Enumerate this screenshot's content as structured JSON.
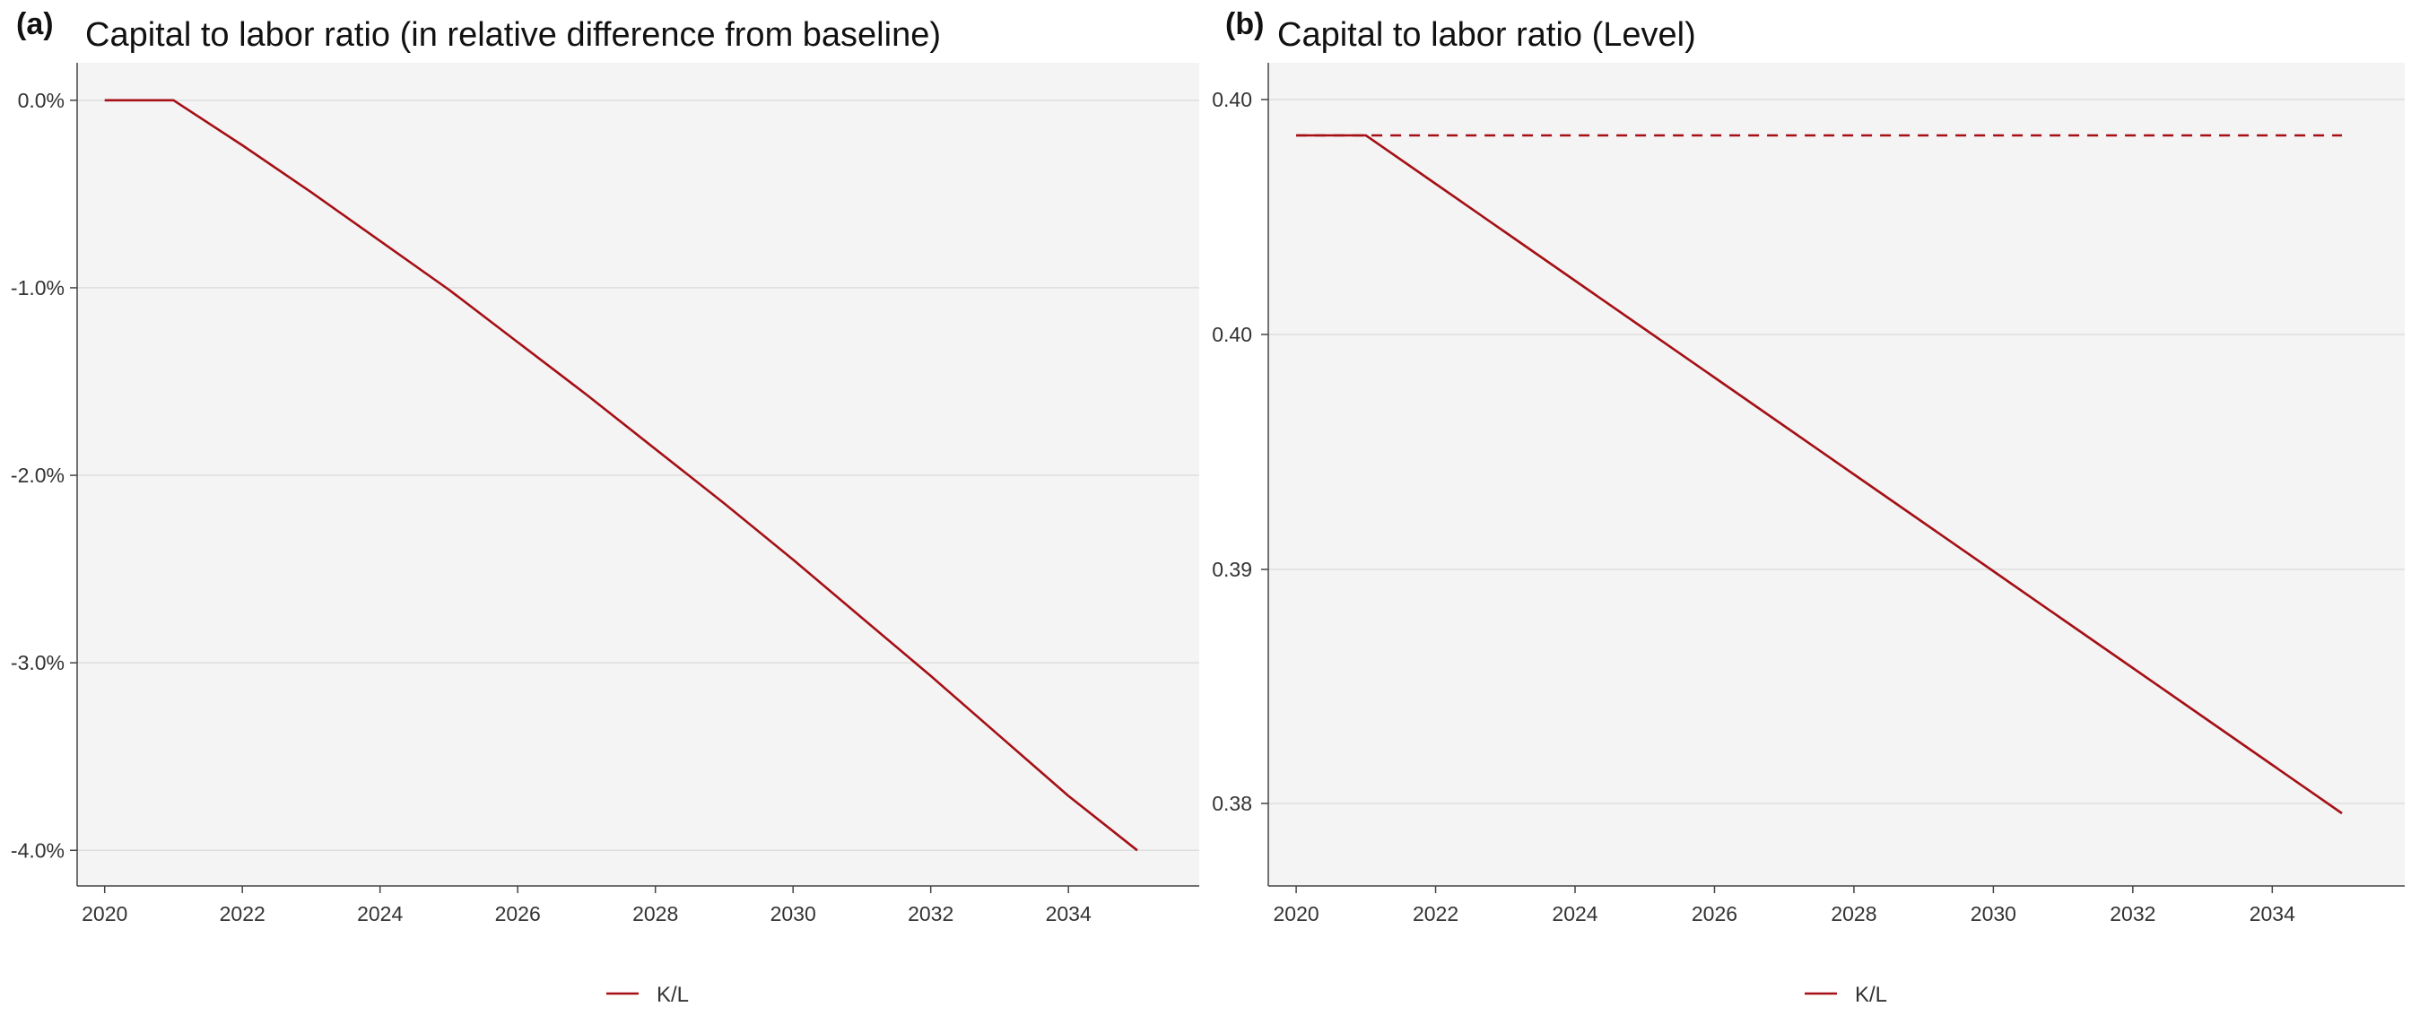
{
  "chart_data": [
    {
      "panel_label": "(a)",
      "type": "line",
      "title": "Capital to labor ratio (in relative difference from baseline)",
      "xlabel": "",
      "ylabel": "",
      "x_ticks": [
        "2020",
        "2022",
        "2024",
        "2026",
        "2028",
        "2030",
        "2032",
        "2034"
      ],
      "y_ticks": [
        "0.0%",
        "-1.0%",
        "-2.0%",
        "-3.0%",
        "-4.0%"
      ],
      "y_tick_values": [
        0,
        -1,
        -2,
        -3,
        -4
      ],
      "xlim": [
        2019.6,
        2035.9
      ],
      "ylim": [
        -4.19,
        0.2
      ],
      "grid": "horizontal",
      "legend_position": "bottom",
      "series": [
        {
          "name": "K/L",
          "color": "#a50f15",
          "style": "solid",
          "x": [
            2020,
            2021,
            2022,
            2023,
            2024,
            2025,
            2026,
            2027,
            2028,
            2029,
            2030,
            2031,
            2032,
            2033,
            2034,
            2035
          ],
          "y": [
            0,
            0,
            -0.24,
            -0.49,
            -0.75,
            -1.01,
            -1.29,
            -1.57,
            -1.86,
            -2.15,
            -2.45,
            -2.76,
            -3.07,
            -3.39,
            -3.71,
            -4.0
          ]
        }
      ]
    },
    {
      "panel_label": "(b)",
      "type": "line",
      "title": "Capital to labor ratio (Level)",
      "xlabel": "",
      "ylabel": "",
      "x_ticks": [
        "2020",
        "2022",
        "2024",
        "2026",
        "2028",
        "2030",
        "2032",
        "2034"
      ],
      "y_ticks": [
        "0.40",
        "0.40",
        "0.39",
        "0.38"
      ],
      "y_tick_values": [
        0.4,
        0.4,
        0.39,
        0.38
      ],
      "xlim": [
        2019.6,
        2035.9
      ],
      "ylim": [
        0.3765,
        0.3935
      ],
      "y_value_range": [
        0.3765,
        0.3935
      ],
      "grid": "horizontal",
      "legend_position": "bottom",
      "series": [
        {
          "name": "K/L",
          "color": "#a50f15",
          "style": "solid",
          "x": [
            2020,
            2021,
            2022,
            2023,
            2024,
            2025,
            2026,
            2027,
            2028,
            2029,
            2030,
            2031,
            2032,
            2033,
            2034,
            2035
          ],
          "y": [
            0.392,
            0.392,
            0.391,
            0.39,
            0.389,
            0.388,
            0.387,
            0.386,
            0.385,
            0.384,
            0.383,
            0.382,
            0.381,
            0.38,
            0.379,
            0.378
          ]
        },
        {
          "color": "#a50f15",
          "style": "dashed",
          "x": [
            2020,
            2035
          ],
          "y": [
            0.392,
            0.392
          ]
        }
      ]
    }
  ]
}
